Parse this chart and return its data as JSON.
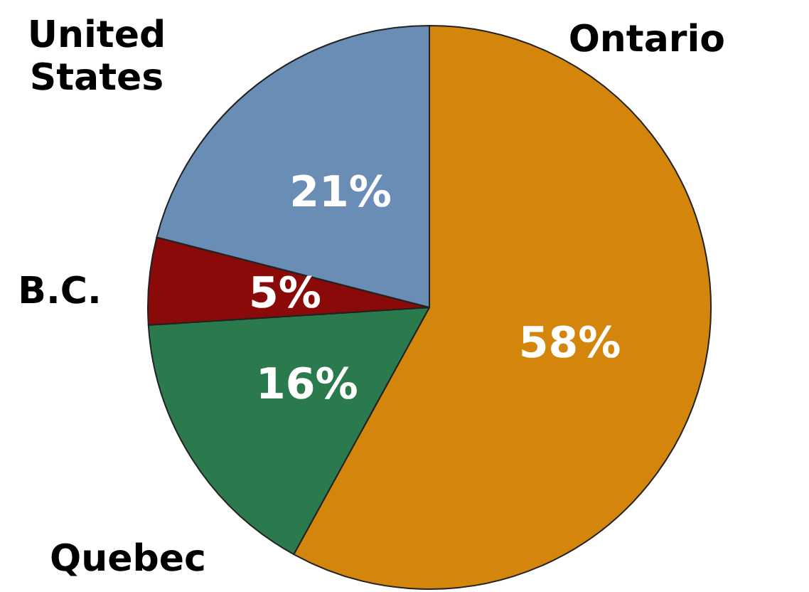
{
  "chart_data": {
    "type": "pie",
    "categories": [
      "Ontario",
      "Quebec",
      "B.C.",
      "United States"
    ],
    "values": [
      58,
      16,
      5,
      21
    ],
    "colors": [
      "#d4860c",
      "#2b7a4e",
      "#8a0a0a",
      "#6a8db5"
    ],
    "value_labels": [
      "58%",
      "16%",
      "5%",
      "21%"
    ],
    "legend": false
  }
}
